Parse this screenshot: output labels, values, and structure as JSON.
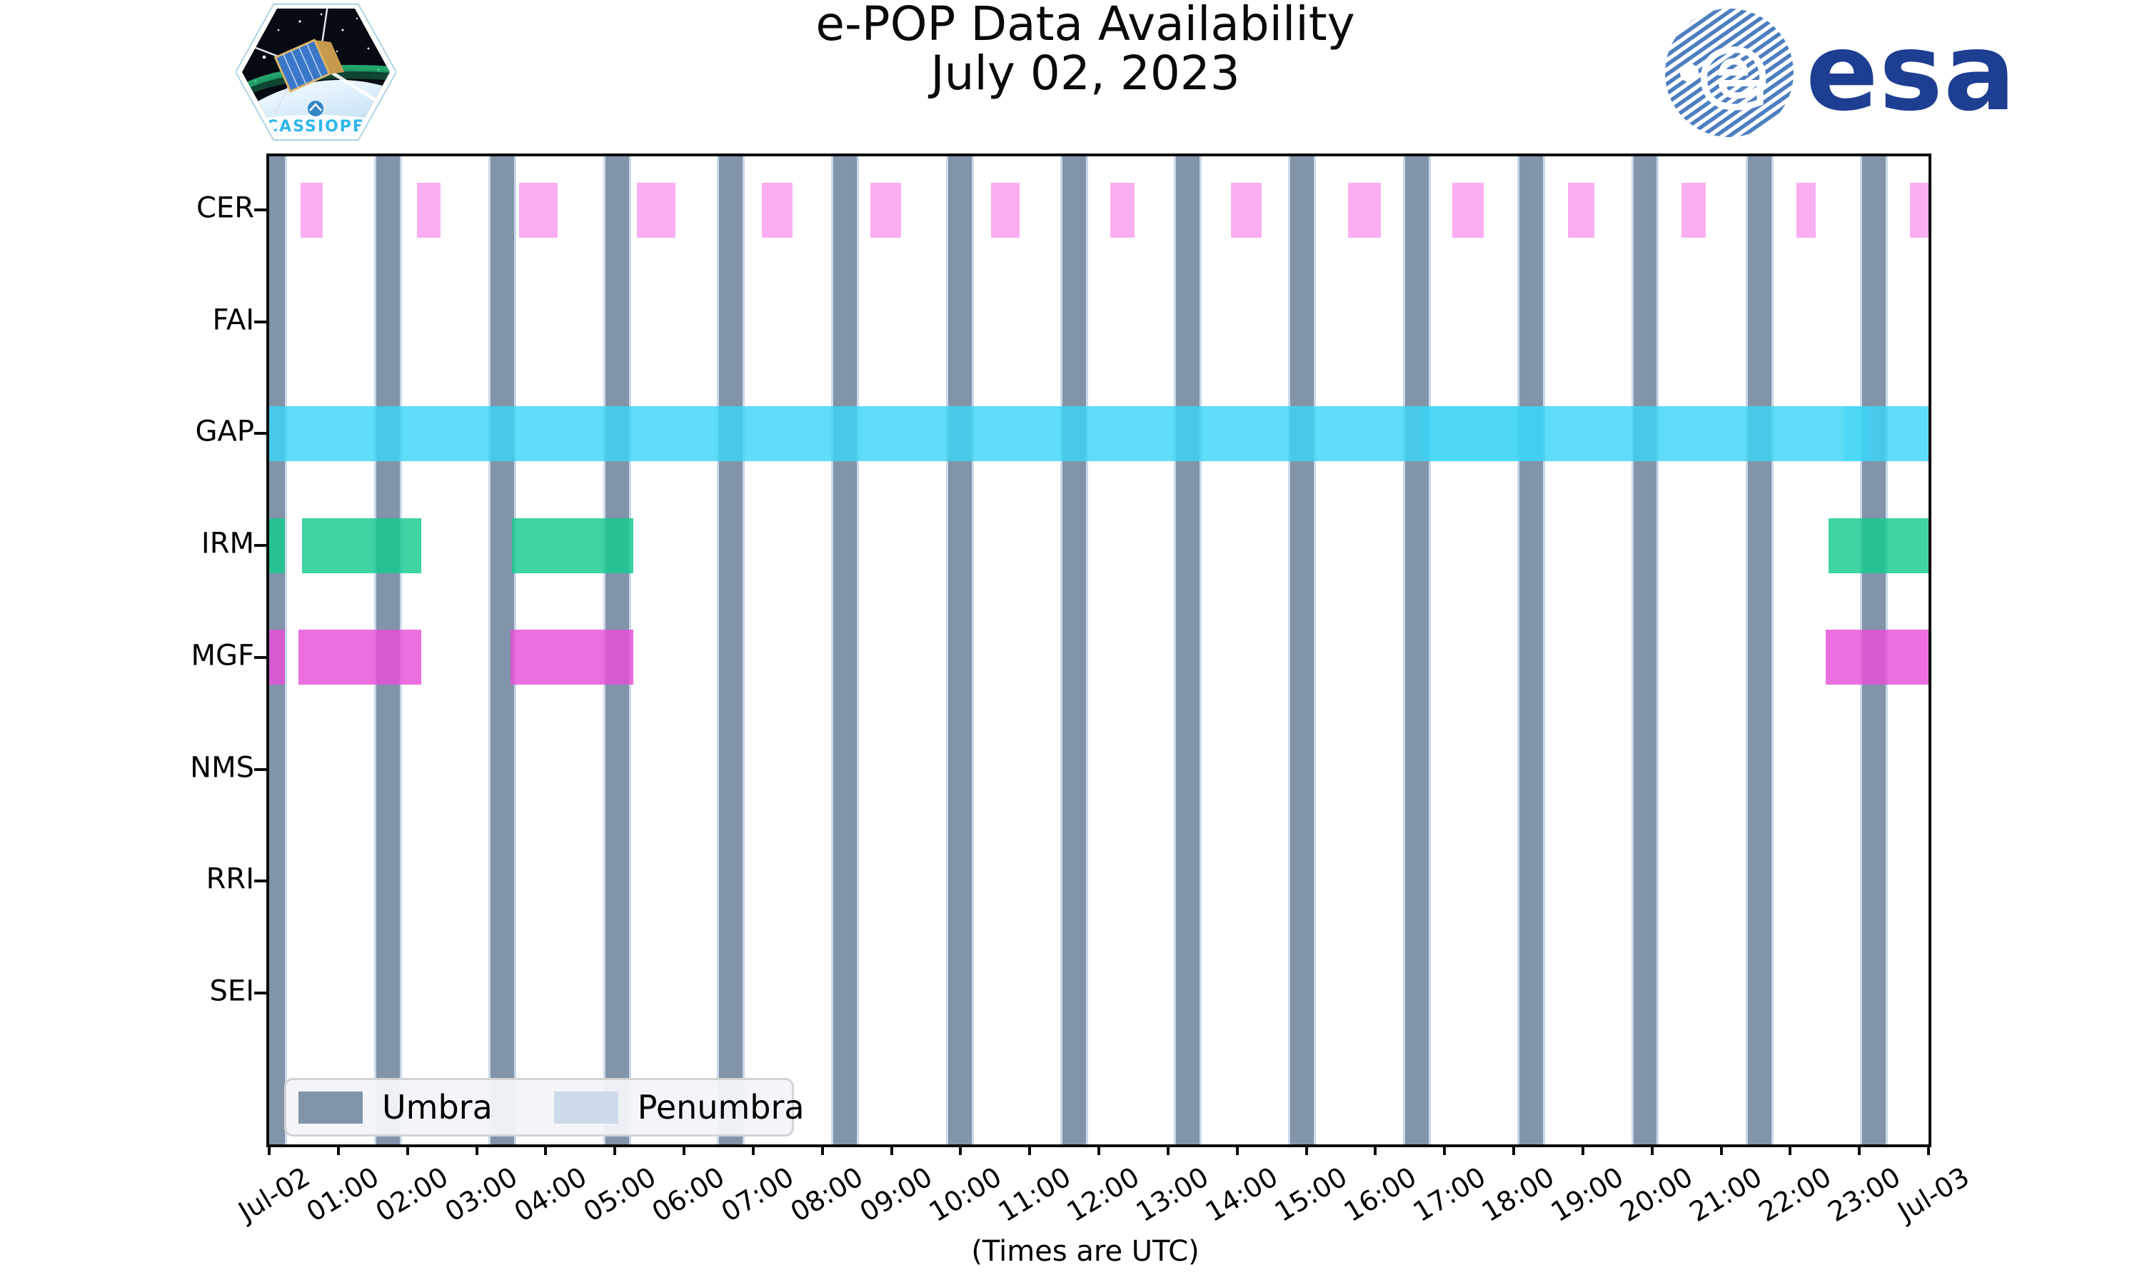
{
  "branding": {
    "mission_name": "CASSIOPE",
    "esa_text": "esa"
  },
  "chart_data": {
    "type": "timeline",
    "title": "e-POP Data Availability",
    "subtitle": "July 02, 2023",
    "xlabel": "(Times are UTC)",
    "x_range_hours": [
      0,
      24
    ],
    "x_tick_labels": [
      "Jul-02",
      "01:00",
      "02:00",
      "03:00",
      "04:00",
      "05:00",
      "06:00",
      "07:00",
      "08:00",
      "09:00",
      "10:00",
      "11:00",
      "12:00",
      "13:00",
      "14:00",
      "15:00",
      "16:00",
      "17:00",
      "18:00",
      "19:00",
      "20:00",
      "21:00",
      "22:00",
      "23:00",
      "Jul-03"
    ],
    "rows": [
      "CER",
      "FAI",
      "GAP",
      "IRM",
      "MGF",
      "NMS",
      "RRI",
      "SEI"
    ],
    "colors": {
      "umbra": "#8294AA",
      "penumbra": "#C9D8E8",
      "CER": "#FA9CEF",
      "GAP": "#3CD4F5",
      "IRM": "#13CA8F",
      "MGF": "#E84FD8"
    },
    "umbra_hours": [
      [
        0,
        0.23
      ],
      [
        1.55,
        1.89
      ],
      [
        3.2,
        3.54
      ],
      [
        4.86,
        5.2
      ],
      [
        6.51,
        6.85
      ],
      [
        8.16,
        8.5
      ],
      [
        9.82,
        10.16
      ],
      [
        11.47,
        11.81
      ],
      [
        13.12,
        13.46
      ],
      [
        14.77,
        15.11
      ],
      [
        16.43,
        16.77
      ],
      [
        18.08,
        18.42
      ],
      [
        19.73,
        20.07
      ],
      [
        21.39,
        21.73
      ],
      [
        23.04,
        23.38
      ]
    ],
    "series": {
      "CER": [
        [
          0.45,
          0.77
        ],
        [
          2.14,
          2.48
        ],
        [
          3.61,
          4.17
        ],
        [
          5.32,
          5.88
        ],
        [
          7.13,
          7.57
        ],
        [
          8.7,
          9.14
        ],
        [
          10.44,
          10.85
        ],
        [
          12.17,
          12.52
        ],
        [
          13.91,
          14.35
        ],
        [
          15.6,
          16.08
        ],
        [
          17.11,
          17.57
        ],
        [
          18.78,
          19.17
        ],
        [
          20.43,
          20.78
        ],
        [
          22.09,
          22.37
        ],
        [
          23.73,
          24
        ]
      ],
      "FAI": [],
      "GAP": [
        [
          0,
          24
        ]
      ],
      "IRM": [
        [
          0,
          0.23
        ],
        [
          0.48,
          2.2
        ],
        [
          3.51,
          5.27
        ],
        [
          22.55,
          24
        ]
      ],
      "MGF": [
        [
          0,
          0.23
        ],
        [
          0.42,
          2.2
        ],
        [
          3.49,
          5.27
        ],
        [
          22.51,
          24
        ]
      ],
      "NMS": [],
      "RRI": [],
      "SEI": []
    },
    "gap_dark_overlays": [
      [
        16.68,
        18.44
      ],
      [
        22.78,
        23.15
      ]
    ],
    "legend": {
      "items": [
        {
          "label": "Umbra",
          "color": "#8294AA"
        },
        {
          "label": "Penumbra",
          "color": "#CCDAEA"
        }
      ]
    }
  }
}
